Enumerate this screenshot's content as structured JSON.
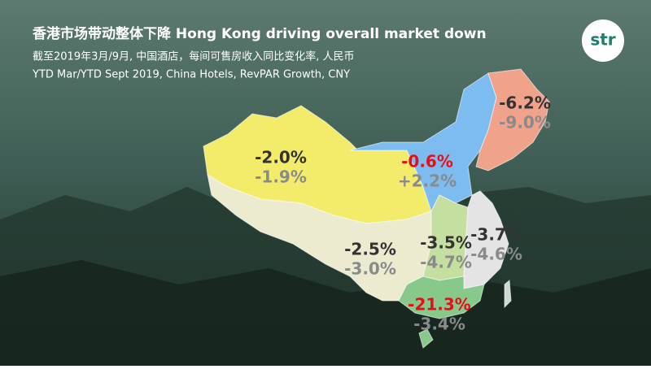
{
  "header": {
    "title": "香港市场带动整体下降 Hong Kong driving overall market down",
    "subtitle_cn": "截至2019年3月/9月, 中国酒店，每间可售房收入同比变化率, 人民币",
    "subtitle_en": "YTD Mar/YTD Sept 2019, China Hotels, RevPAR Growth, CNY",
    "logo": "str"
  },
  "regions": [
    {
      "ytd_mar": "-2.0%",
      "ytd_sep": "-1.9%"
    },
    {
      "ytd_mar": "-0.6%",
      "ytd_sep": "+2.2%"
    },
    {
      "ytd_mar": "-6.2%",
      "ytd_sep": "-9.0%"
    },
    {
      "ytd_mar": "-2.5%",
      "ytd_sep": "-3.0%"
    },
    {
      "ytd_mar": "-3.5%",
      "ytd_sep": "-4.7%"
    },
    {
      "ytd_mar": "-3.7%",
      "ytd_sep": "-4.6%"
    },
    {
      "ytd_mar": "-21.3%",
      "ytd_sep": "-3.4%"
    }
  ]
}
